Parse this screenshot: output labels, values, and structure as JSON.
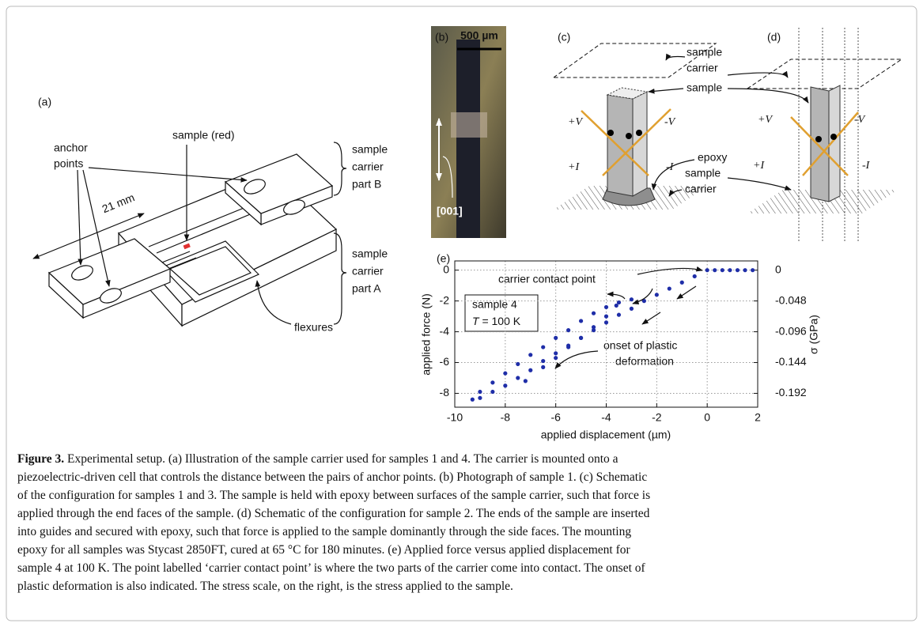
{
  "figure": {
    "panel_a": {
      "label": "(a)",
      "anchor_points": [
        "anchor",
        "points"
      ],
      "sample": "sample (red)",
      "dimension": "21 mm",
      "part_b": [
        "sample",
        "carrier",
        "part B"
      ],
      "part_a": [
        "sample",
        "carrier",
        "part A"
      ],
      "flexures": "flexures"
    },
    "panel_b": {
      "label": "(b)",
      "scale_bar": "500 µm",
      "direction": "[001]"
    },
    "panel_c": {
      "label": "(c)",
      "top_carrier": [
        "sample",
        "carrier"
      ],
      "sample": "sample",
      "plus_v": "+V",
      "minus_v": "-V",
      "plus_i": "+I",
      "minus_i": "-I",
      "epoxy": "epoxy",
      "bottom_carrier": [
        "sample",
        "carrier"
      ]
    },
    "panel_d": {
      "label": "(d)",
      "plus_v": "+V",
      "minus_v": "-V",
      "plus_i": "+I",
      "minus_i": "-I"
    }
  },
  "chart_data": {
    "type": "scatter",
    "panel_label": "(e)",
    "x_label": "applied displacement (µm)",
    "y_label": "applied force (N)",
    "y2_label": "σ (GPa)",
    "xlim": [
      -10,
      2
    ],
    "xticks": [
      -10,
      -8,
      -6,
      -4,
      -2,
      0,
      2
    ],
    "ylim": [
      -8.9,
      0.6
    ],
    "yticks": [
      0,
      -2,
      -4,
      -6,
      -8
    ],
    "y2lim": [
      -0.2136,
      0.0144
    ],
    "y2ticks": [
      0,
      -0.048,
      -0.096,
      -0.144,
      -0.192
    ],
    "grid": true,
    "annotations": {
      "contact": "carrier contact point",
      "sample": "sample 4",
      "temperature_symbol": "T",
      "temperature": " = 100 K",
      "onset": [
        "onset of plastic",
        "deformation"
      ]
    },
    "series": [
      {
        "color": "#1f2ea8",
        "x": [
          1.8,
          1.5,
          1.2,
          0.9,
          0.6,
          0.3,
          0,
          -0.5,
          -1,
          -1.5,
          -2,
          -2.5,
          -3,
          -3.5,
          -4,
          -4.5,
          -5,
          -5.5,
          -6,
          -6.5,
          -7,
          -7.5,
          -8,
          -8.5,
          -9,
          -9.3,
          -9,
          -8.5,
          -8,
          -7.5,
          -7,
          -6.5,
          -6,
          -5.5,
          -5,
          -4.5,
          -4,
          -3.5,
          -3,
          -7.2,
          -6.5,
          -6,
          -5.5,
          -5,
          -4.5,
          -4,
          -3.6
        ],
        "values": [
          0,
          0,
          0,
          0,
          0,
          0,
          0,
          -0.4,
          -0.8,
          -1.2,
          -1.6,
          -2.0,
          -2.5,
          -2.9,
          -3.4,
          -3.9,
          -4.4,
          -4.9,
          -5.4,
          -5.9,
          -6.5,
          -7.0,
          -7.5,
          -7.9,
          -8.3,
          -8.4,
          -7.9,
          -7.3,
          -6.7,
          -6.1,
          -5.5,
          -5.0,
          -4.4,
          -3.9,
          -3.3,
          -2.8,
          -2.4,
          -2.1,
          -1.9,
          -7.2,
          -6.3,
          -5.7,
          -5.0,
          -4.4,
          -3.7,
          -3.0,
          -2.3
        ]
      }
    ]
  },
  "caption": {
    "label": "Figure 3.",
    "lines": [
      " Experimental setup. (a) Illustration of the sample carrier used for samples 1 and 4. The carrier is mounted onto a",
      "piezoelectric-driven cell that controls the distance between the pairs of anchor points. (b) Photograph of sample 1. (c) Schematic",
      "of the configuration for samples 1 and 3. The sample is held with epoxy between surfaces of the sample carrier, such that force is",
      "applied through the end faces of the sample. (d) Schematic of the configuration for sample 2. The ends of the sample are inserted",
      "into guides and secured with epoxy, such that force is applied to the sample dominantly through the side faces. The mounting",
      "epoxy for all samples was Stycast 2850FT, cured at 65 °C for 180 minutes. (e) Applied force versus applied displacement for",
      "sample 4 at 100 K. The point labelled ‘carrier contact point’ is where the two parts of the carrier come into contact. The onset of",
      "plastic deformation is also indicated. The stress scale, on the right, is the stress applied to the sample."
    ]
  }
}
